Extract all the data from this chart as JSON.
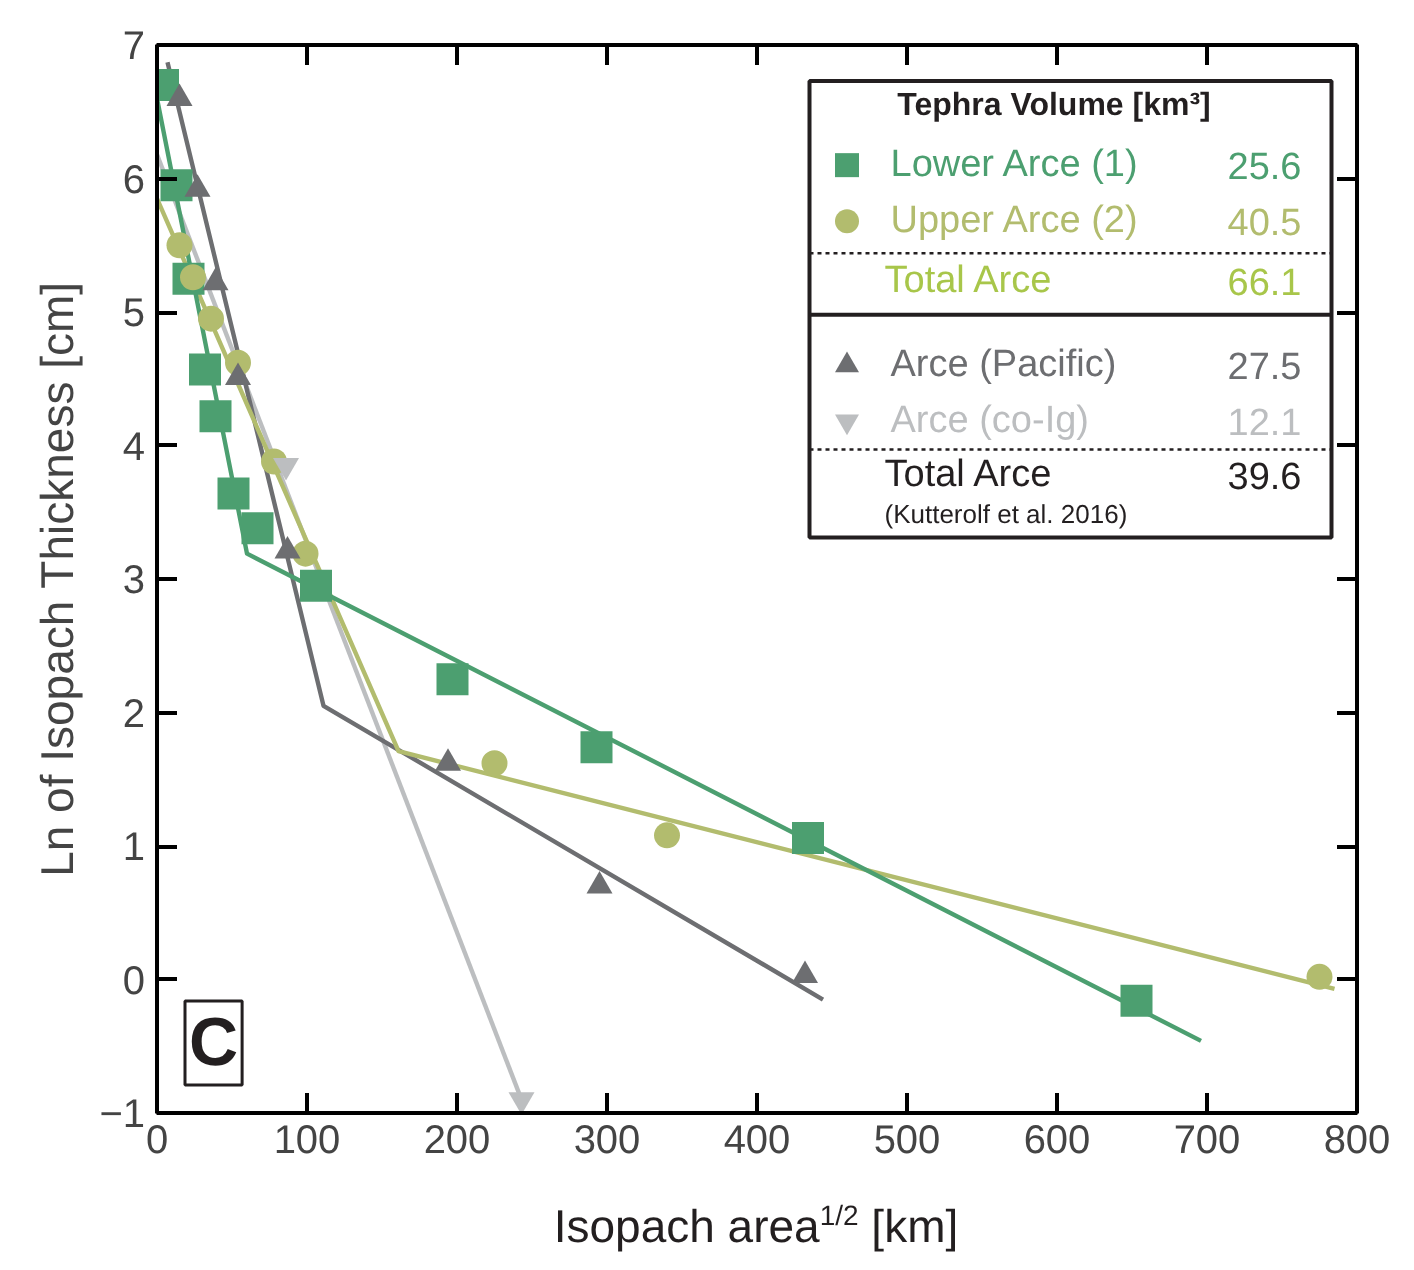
{
  "chart_data": {
    "type": "scatter",
    "xlabel": "Isopach area$^{1/2}$ [km]",
    "ylabel": "Ln of Isopach Thickness [cm]",
    "xlim": [
      0,
      800
    ],
    "ylim": [
      -1,
      7
    ],
    "xticks": [
      0,
      100,
      200,
      300,
      400,
      500,
      600,
      700,
      800
    ],
    "yticks": [
      -1,
      0,
      1,
      2,
      3,
      4,
      5,
      6,
      7
    ],
    "grid": false,
    "legend": "top right",
    "legend_title": "Tephra Volume [km³]",
    "annotations": [
      "25.6",
      "40.5",
      "Total Arce",
      "66.1",
      "27.5",
      "12.1",
      "Total Arce",
      "39.6",
      "(Kutterolf et al. 2016)",
      "C"
    ],
    "series": [
      {
        "name": "Lower Arce (1)",
        "marker": "square",
        "color": "#4c9f70",
        "x": [
          4,
          13,
          21,
          32,
          39,
          51,
          67,
          106,
          197,
          293,
          434,
          653
        ],
        "values": [
          6.7,
          5.95,
          5.25,
          4.57,
          4.22,
          3.64,
          3.38,
          2.95,
          2.25,
          1.74,
          1.06,
          -0.16
        ]
      },
      {
        "name": "Upper Arce (2)",
        "marker": "circle",
        "color": "#b2bc6e",
        "x": [
          15,
          24,
          36,
          54,
          78,
          99,
          225,
          340,
          775
        ],
        "values": [
          5.5,
          5.26,
          4.95,
          4.62,
          3.88,
          3.19,
          1.62,
          1.08,
          0.02
        ]
      },
      {
        "name": "Arce (Pacific)",
        "marker": "triangle",
        "color": "#6d6e71",
        "x": [
          15,
          27,
          39,
          54,
          87,
          194,
          295,
          432
        ],
        "values": [
          6.6,
          5.92,
          5.22,
          4.51,
          3.21,
          1.62,
          0.7,
          0.03
        ]
      },
      {
        "name": "Arce (co-Ig)",
        "color": "#bcbec0",
        "x": [
          86,
          243
        ],
        "values": [
          3.85,
          -0.9
        ]
      },
      {
        "type": "line",
        "marker": "none",
        "color": "#bcbec0",
        "x": [
          0,
          243
        ],
        "values": [
          6.18,
          -0.9
        ]
      },
      {
        "type": "line",
        "marker": "none",
        "color": "#6d6e71",
        "x": [
          7,
          111,
          444
        ],
        "values": [
          6.87,
          2.05,
          -0.15
        ]
      },
      {
        "type": "line",
        "marker": "none",
        "color": "#b2bc6e",
        "x": [
          0,
          161,
          785
        ],
        "values": [
          5.85,
          1.71,
          -0.07
        ]
      },
      {
        "type": "line",
        "marker": "none",
        "color": "#4c9f70",
        "x": [
          0,
          60,
          696
        ],
        "values": [
          6.6,
          3.19,
          -0.46
        ]
      }
    ]
  }
}
